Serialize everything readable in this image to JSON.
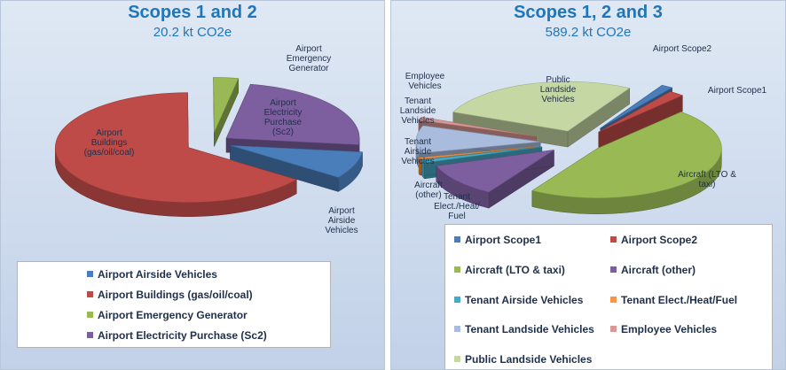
{
  "colors": {
    "airside_blue": "#4a7ebb",
    "buildings_red": "#be4b48",
    "emergency_green": "#98b954",
    "electricity_purple": "#7d5fa0",
    "tenant_airside_teal": "#46aac5",
    "tenant_elect_orange": "#f79646",
    "tenant_landside_lightblue": "#a9bcde",
    "employee_pink": "#d99795",
    "public_landside_lightgreen": "#c5d8a4",
    "title_blue": "#1f76b8"
  },
  "chart_data": [
    {
      "type": "pie",
      "title": "Scopes 1 and 2",
      "subtitle": "20.2 kt CO2e",
      "slices": [
        {
          "id": "airside",
          "label": "Airport Airside Vehicles",
          "slice_label": [
            "Airport",
            "Airside",
            "Vehicles"
          ],
          "value": 8,
          "exploded": true,
          "color_key": "airside_blue"
        },
        {
          "id": "buildings",
          "label": "Airport Buildings (gas/oil/coal)",
          "slice_label": [
            "Airport",
            "Buildings",
            "(gas/oil/coal)"
          ],
          "value": 65,
          "exploded": true,
          "color_key": "buildings_red"
        },
        {
          "id": "emergency",
          "label": "Airport Emergency Generator",
          "slice_label": [
            "Airport",
            "Emergency",
            "Generator"
          ],
          "value": 3,
          "exploded": true,
          "color_key": "emergency_green"
        },
        {
          "id": "electricity",
          "label": "Airport Electricity Purchase (Sc2)",
          "slice_label": [
            "Airport",
            "Electricity",
            "Purchase",
            "(Sc2)"
          ],
          "value": 24,
          "exploded": true,
          "color_key": "electricity_purple"
        }
      ],
      "legend": [
        "Airport Airside Vehicles",
        "Airport Buildings (gas/oil/coal)",
        "Airport Emergency Generator",
        "Airport Electricity Purchase (Sc2)"
      ],
      "legend_position": "bottom"
    },
    {
      "type": "pie",
      "title": "Scopes 1, 2 and 3",
      "subtitle": "589.2 kt CO2e",
      "slices": [
        {
          "id": "scope1",
          "label": "Airport Scope1",
          "slice_label": [
            "Airport Scope1"
          ],
          "value": 1.5,
          "exploded": true,
          "color_key": "airside_blue"
        },
        {
          "id": "scope2",
          "label": "Airport Scope2",
          "slice_label": [
            "Airport Scope2"
          ],
          "value": 2.0,
          "exploded": true,
          "color_key": "buildings_red"
        },
        {
          "id": "aircraft_lto",
          "label": "Aircraft (LTO & taxi)",
          "slice_label": [
            "Aircraft (LTO &",
            "taxi)"
          ],
          "value": 47,
          "exploded": true,
          "color_key": "emergency_green"
        },
        {
          "id": "aircraft_other",
          "label": "Aircraft (other)",
          "slice_label": [
            "Aircraft",
            "(other)"
          ],
          "value": 11,
          "exploded": true,
          "color_key": "electricity_purple"
        },
        {
          "id": "tenant_airside",
          "label": "Tenant Airside Vehicles",
          "slice_label": [
            "Tenant",
            "Airside",
            "Vehicles"
          ],
          "value": 1.0,
          "exploded": true,
          "color_key": "tenant_airside_teal"
        },
        {
          "id": "tenant_elect",
          "label": "Tenant Elect./Heat/Fuel",
          "slice_label": [
            "Tenant",
            "Elect./Heat/",
            "Fuel"
          ],
          "value": 0.5,
          "exploded": true,
          "color_key": "tenant_elect_orange"
        },
        {
          "id": "tenant_landside",
          "label": "Tenant Landside Vehicles",
          "slice_label": [
            "Tenant",
            "Landside",
            "Vehicles"
          ],
          "value": 9,
          "exploded": true,
          "color_key": "tenant_landside_lightblue"
        },
        {
          "id": "employee",
          "label": "Employee Vehicles",
          "slice_label": [
            "Employee",
            "Vehicles"
          ],
          "value": 1.0,
          "exploded": true,
          "color_key": "employee_pink"
        },
        {
          "id": "public_landside",
          "label": "Public Landside Vehicles",
          "slice_label": [
            "Public",
            "Landside",
            "Vehicles"
          ],
          "value": 27,
          "exploded": true,
          "color_key": "public_landside_lightgreen"
        }
      ],
      "legend": [
        "Airport Scope1",
        "Airport Scope2",
        "Aircraft (LTO & taxi)",
        "Aircraft (other)",
        "Tenant Airside Vehicles",
        "Tenant Elect./Heat/Fuel",
        "Tenant Landside Vehicles",
        "Employee Vehicles",
        "Public Landside Vehicles"
      ],
      "legend_position": "bottom-right"
    }
  ]
}
